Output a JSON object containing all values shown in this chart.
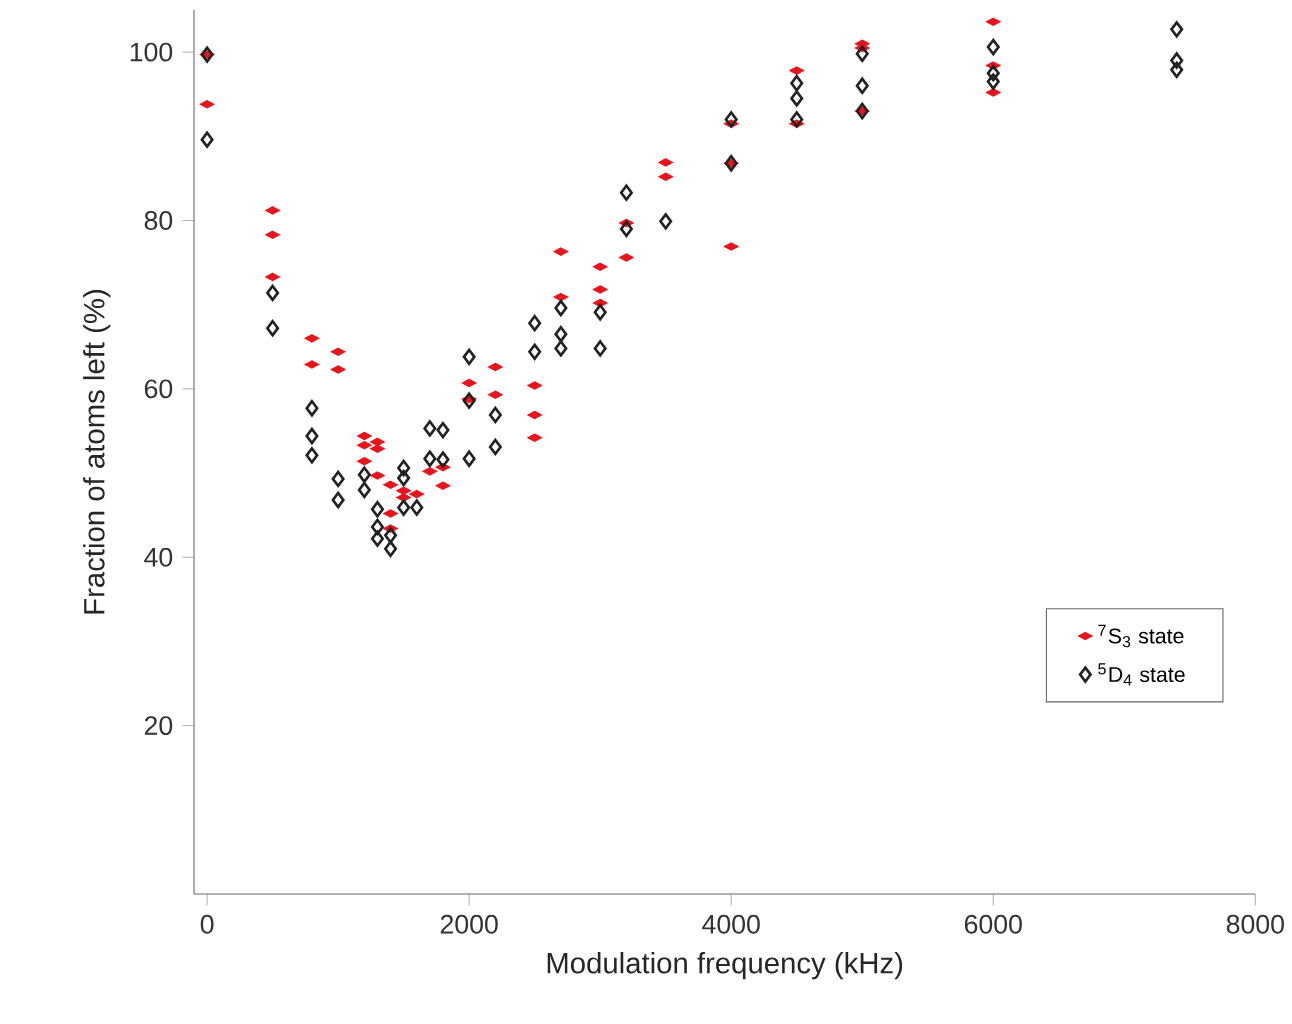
{
  "chart_data": {
    "type": "scatter",
    "xlabel": "Modulation frequency (kHz)",
    "ylabel": "Fraction of atoms left (%)",
    "xlim": [
      -100,
      8000
    ],
    "ylim": [
      0,
      105
    ],
    "xticks": [
      0,
      2000,
      4000,
      6000,
      8000
    ],
    "yticks": [
      20,
      40,
      60,
      80,
      100
    ],
    "legend": "right",
    "grid": false,
    "marker": "diamond",
    "series": [
      {
        "name": "$^{7}$S$_{3}$ state",
        "color": "#e8141c",
        "x": [
          0,
          0,
          500,
          500,
          500,
          800,
          800,
          1000,
          1000,
          1200,
          1200,
          1200,
          1300,
          1300,
          1300,
          1400,
          1400,
          1400,
          1500,
          1500,
          1600,
          1700,
          1800,
          1800,
          2000,
          2000,
          2200,
          2200,
          2500,
          2500,
          2500,
          2700,
          2700,
          3000,
          3000,
          3000,
          3200,
          3200,
          3500,
          3500,
          4000,
          4000,
          4000,
          4500,
          4500,
          5000,
          5000,
          5000,
          6000,
          6000,
          6000
        ],
        "values": [
          99.7,
          93.8,
          81.2,
          78.3,
          73.3,
          66,
          62.9,
          64.4,
          62.3,
          54.4,
          53.3,
          51.4,
          53.7,
          52.9,
          49.7,
          48.6,
          45.2,
          43.4,
          47.9,
          47.1,
          47.5,
          50.2,
          50.7,
          48.5,
          60.7,
          58.8,
          62.6,
          59.3,
          60.4,
          56.9,
          54.2,
          76.3,
          70.9,
          74.5,
          71.8,
          70.2,
          79.7,
          75.6,
          86.9,
          85.2,
          91.5,
          86.8,
          76.9,
          97.8,
          91.5,
          101,
          100.5,
          93,
          103.6,
          98.4,
          95.2
        ]
      },
      {
        "name": "$^{5}$D$_{4}$ state",
        "color": "#222222",
        "x": [
          0,
          0,
          500,
          500,
          800,
          800,
          800,
          1000,
          1000,
          1200,
          1200,
          1300,
          1300,
          1300,
          1400,
          1400,
          1500,
          1500,
          1500,
          1600,
          1700,
          1700,
          1800,
          1800,
          2000,
          2000,
          2000,
          2200,
          2200,
          2500,
          2500,
          2700,
          2700,
          2700,
          3000,
          3000,
          3200,
          3200,
          3500,
          4000,
          4000,
          4500,
          4500,
          4500,
          5000,
          5000,
          5000,
          6000,
          6000,
          6000,
          7400,
          7400,
          7400
        ],
        "values": [
          99.7,
          89.6,
          71.4,
          67.2,
          57.7,
          54.4,
          52.1,
          49.3,
          46.8,
          49.8,
          48,
          45.7,
          43.6,
          42.2,
          42.6,
          41,
          50.6,
          49.4,
          45.9,
          45.9,
          55.3,
          51.7,
          55.1,
          51.6,
          63.8,
          58.6,
          51.7,
          56.9,
          53.1,
          67.8,
          64.4,
          69.6,
          66.5,
          64.8,
          69.1,
          64.8,
          83.3,
          79,
          79.9,
          92,
          86.8,
          96.3,
          94.5,
          92,
          99.8,
          96,
          93,
          100.6,
          97.5,
          96.5,
          102.7,
          99,
          97.9
        ]
      }
    ]
  }
}
